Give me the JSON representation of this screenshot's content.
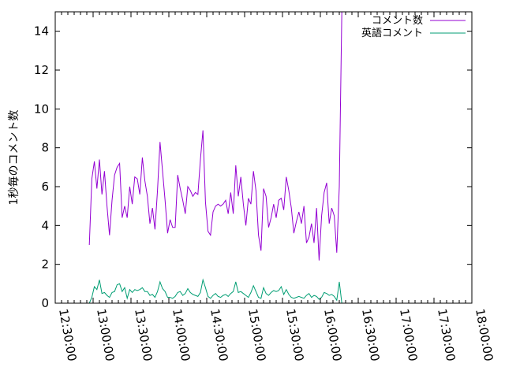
{
  "chart_data": {
    "type": "line",
    "ylabel": "1秒毎のコメント数",
    "xlim": [
      "12:30:00",
      "18:00:00"
    ],
    "ylim": [
      0,
      15
    ],
    "x_ticks": [
      "12:30:00",
      "13:00:00",
      "13:30:00",
      "14:00:00",
      "14:30:00",
      "15:00:00",
      "15:30:00",
      "16:00:00",
      "16:30:00",
      "17:00:00",
      "17:30:00",
      "18:00:00"
    ],
    "y_ticks": [
      "0",
      "2",
      "4",
      "6",
      "8",
      "10",
      "12",
      "14"
    ],
    "legend_position": "top-right",
    "grid": false,
    "series": [
      {
        "name": "コメント数",
        "color": "#9400d3",
        "points": [
          [
            "12:57:00",
            3.0
          ],
          [
            "12:59:00",
            6.4
          ],
          [
            "13:01:00",
            7.3
          ],
          [
            "13:03:00",
            5.9
          ],
          [
            "13:05:00",
            7.4
          ],
          [
            "13:07:00",
            5.6
          ],
          [
            "13:09:00",
            6.8
          ],
          [
            "13:11:00",
            5.0
          ],
          [
            "13:13:00",
            3.5
          ],
          [
            "13:15:00",
            5.3
          ],
          [
            "13:17:00",
            6.6
          ],
          [
            "13:19:00",
            7.0
          ],
          [
            "13:21:00",
            7.2
          ],
          [
            "13:23:00",
            4.4
          ],
          [
            "13:25:00",
            5.0
          ],
          [
            "13:27:00",
            4.4
          ],
          [
            "13:29:00",
            6.0
          ],
          [
            "13:31:00",
            5.1
          ],
          [
            "13:33:00",
            6.5
          ],
          [
            "13:35:00",
            6.4
          ],
          [
            "13:37:00",
            5.6
          ],
          [
            "13:39:00",
            7.5
          ],
          [
            "13:41:00",
            6.3
          ],
          [
            "13:43:00",
            5.5
          ],
          [
            "13:45:00",
            4.1
          ],
          [
            "13:47:00",
            4.9
          ],
          [
            "13:49:00",
            3.8
          ],
          [
            "13:51:00",
            5.8
          ],
          [
            "13:53:00",
            8.3
          ],
          [
            "13:55:00",
            6.8
          ],
          [
            "13:57:00",
            5.3
          ],
          [
            "13:59:00",
            3.6
          ],
          [
            "14:01:00",
            4.3
          ],
          [
            "14:03:00",
            3.9
          ],
          [
            "14:05:00",
            3.9
          ],
          [
            "14:07:00",
            6.6
          ],
          [
            "14:09:00",
            5.9
          ],
          [
            "14:11:00",
            5.3
          ],
          [
            "14:13:00",
            4.6
          ],
          [
            "14:15:00",
            6.0
          ],
          [
            "14:17:00",
            5.8
          ],
          [
            "14:19:00",
            5.5
          ],
          [
            "14:21:00",
            5.7
          ],
          [
            "14:23:00",
            5.6
          ],
          [
            "14:25:00",
            7.4
          ],
          [
            "14:27:00",
            8.9
          ],
          [
            "14:29:00",
            5.2
          ],
          [
            "14:31:00",
            3.7
          ],
          [
            "14:33:00",
            3.5
          ],
          [
            "14:35:00",
            4.7
          ],
          [
            "14:37:00",
            5.0
          ],
          [
            "14:39:00",
            5.1
          ],
          [
            "14:41:00",
            5.0
          ],
          [
            "14:43:00",
            5.1
          ],
          [
            "14:45:00",
            5.3
          ],
          [
            "14:47:00",
            4.6
          ],
          [
            "14:49:00",
            5.7
          ],
          [
            "14:51:00",
            4.6
          ],
          [
            "14:53:00",
            7.1
          ],
          [
            "14:55:00",
            5.5
          ],
          [
            "14:57:00",
            6.5
          ],
          [
            "14:59:00",
            5.1
          ],
          [
            "15:01:00",
            4.0
          ],
          [
            "15:03:00",
            5.4
          ],
          [
            "15:05:00",
            5.1
          ],
          [
            "15:07:00",
            6.8
          ],
          [
            "15:09:00",
            5.8
          ],
          [
            "15:11:00",
            3.5
          ],
          [
            "15:13:00",
            2.7
          ],
          [
            "15:15:00",
            5.9
          ],
          [
            "15:17:00",
            5.5
          ],
          [
            "15:19:00",
            3.9
          ],
          [
            "15:21:00",
            4.4
          ],
          [
            "15:23:00",
            5.1
          ],
          [
            "15:25:00",
            4.4
          ],
          [
            "15:27:00",
            5.3
          ],
          [
            "15:29:00",
            5.4
          ],
          [
            "15:31:00",
            4.8
          ],
          [
            "15:33:00",
            6.5
          ],
          [
            "15:35:00",
            5.8
          ],
          [
            "15:37:00",
            4.9
          ],
          [
            "15:39:00",
            3.6
          ],
          [
            "15:41:00",
            4.2
          ],
          [
            "15:43:00",
            4.7
          ],
          [
            "15:45:00",
            4.1
          ],
          [
            "15:47:00",
            5.0
          ],
          [
            "15:49:00",
            3.1
          ],
          [
            "15:51:00",
            3.4
          ],
          [
            "15:53:00",
            4.1
          ],
          [
            "15:55:00",
            3.1
          ],
          [
            "15:57:00",
            4.9
          ],
          [
            "15:59:00",
            2.2
          ],
          [
            "16:01:00",
            4.5
          ],
          [
            "16:03:00",
            5.7
          ],
          [
            "16:05:00",
            6.2
          ],
          [
            "16:07:00",
            4.1
          ],
          [
            "16:09:00",
            4.9
          ],
          [
            "16:11:00",
            4.5
          ],
          [
            "16:13:00",
            2.6
          ],
          [
            "16:15:00",
            6.0
          ],
          [
            "16:17:00",
            15.0
          ]
        ]
      },
      {
        "name": "英語コメント",
        "color": "#009e73",
        "points": [
          [
            "12:57:00",
            0.0
          ],
          [
            "12:59:00",
            0.3
          ],
          [
            "13:01:00",
            0.85
          ],
          [
            "13:03:00",
            0.7
          ],
          [
            "13:05:00",
            1.2
          ],
          [
            "13:07:00",
            0.5
          ],
          [
            "13:09:00",
            0.55
          ],
          [
            "13:11:00",
            0.4
          ],
          [
            "13:13:00",
            0.3
          ],
          [
            "13:15:00",
            0.55
          ],
          [
            "13:17:00",
            0.6
          ],
          [
            "13:19:00",
            0.95
          ],
          [
            "13:21:00",
            1.0
          ],
          [
            "13:23:00",
            0.6
          ],
          [
            "13:25:00",
            0.8
          ],
          [
            "13:27:00",
            0.25
          ],
          [
            "13:29:00",
            0.7
          ],
          [
            "13:31:00",
            0.55
          ],
          [
            "13:33:00",
            0.7
          ],
          [
            "13:35:00",
            0.65
          ],
          [
            "13:37:00",
            0.7
          ],
          [
            "13:39:00",
            0.8
          ],
          [
            "13:41:00",
            0.6
          ],
          [
            "13:43:00",
            0.6
          ],
          [
            "13:45:00",
            0.4
          ],
          [
            "13:47:00",
            0.45
          ],
          [
            "13:49:00",
            0.3
          ],
          [
            "13:51:00",
            0.6
          ],
          [
            "13:53:00",
            1.1
          ],
          [
            "13:55:00",
            0.75
          ],
          [
            "13:57:00",
            0.6
          ],
          [
            "13:59:00",
            0.3
          ],
          [
            "14:01:00",
            0.3
          ],
          [
            "14:03:00",
            0.25
          ],
          [
            "14:05:00",
            0.35
          ],
          [
            "14:07:00",
            0.55
          ],
          [
            "14:09:00",
            0.6
          ],
          [
            "14:11:00",
            0.4
          ],
          [
            "14:13:00",
            0.5
          ],
          [
            "14:15:00",
            0.75
          ],
          [
            "14:17:00",
            0.55
          ],
          [
            "14:19:00",
            0.45
          ],
          [
            "14:21:00",
            0.4
          ],
          [
            "14:23:00",
            0.35
          ],
          [
            "14:25:00",
            0.55
          ],
          [
            "14:27:00",
            1.2
          ],
          [
            "14:29:00",
            0.8
          ],
          [
            "14:31:00",
            0.35
          ],
          [
            "14:33:00",
            0.25
          ],
          [
            "14:35:00",
            0.4
          ],
          [
            "14:37:00",
            0.5
          ],
          [
            "14:39:00",
            0.35
          ],
          [
            "14:41:00",
            0.3
          ],
          [
            "14:43:00",
            0.4
          ],
          [
            "14:45:00",
            0.45
          ],
          [
            "14:47:00",
            0.35
          ],
          [
            "14:49:00",
            0.5
          ],
          [
            "14:51:00",
            0.6
          ],
          [
            "14:53:00",
            1.1
          ],
          [
            "14:55:00",
            0.55
          ],
          [
            "14:57:00",
            0.6
          ],
          [
            "14:59:00",
            0.5
          ],
          [
            "15:01:00",
            0.4
          ],
          [
            "15:03:00",
            0.3
          ],
          [
            "15:05:00",
            0.55
          ],
          [
            "15:07:00",
            0.9
          ],
          [
            "15:09:00",
            0.6
          ],
          [
            "15:11:00",
            0.3
          ],
          [
            "15:13:00",
            0.25
          ],
          [
            "15:15:00",
            0.8
          ],
          [
            "15:17:00",
            0.5
          ],
          [
            "15:19:00",
            0.4
          ],
          [
            "15:21:00",
            0.55
          ],
          [
            "15:23:00",
            0.65
          ],
          [
            "15:25:00",
            0.6
          ],
          [
            "15:27:00",
            0.65
          ],
          [
            "15:29:00",
            0.85
          ],
          [
            "15:31:00",
            0.45
          ],
          [
            "15:33:00",
            0.7
          ],
          [
            "15:35:00",
            0.45
          ],
          [
            "15:37:00",
            0.3
          ],
          [
            "15:39:00",
            0.25
          ],
          [
            "15:41:00",
            0.3
          ],
          [
            "15:43:00",
            0.35
          ],
          [
            "15:45:00",
            0.3
          ],
          [
            "15:47:00",
            0.25
          ],
          [
            "15:49:00",
            0.4
          ],
          [
            "15:51:00",
            0.5
          ],
          [
            "15:53:00",
            0.3
          ],
          [
            "15:55:00",
            0.4
          ],
          [
            "15:57:00",
            0.35
          ],
          [
            "15:59:00",
            0.2
          ],
          [
            "16:01:00",
            0.3
          ],
          [
            "16:03:00",
            0.55
          ],
          [
            "16:05:00",
            0.5
          ],
          [
            "16:07:00",
            0.4
          ],
          [
            "16:09:00",
            0.45
          ],
          [
            "16:11:00",
            0.35
          ],
          [
            "16:13:00",
            0.15
          ],
          [
            "16:15:00",
            1.1
          ],
          [
            "16:17:00",
            0.0
          ]
        ]
      }
    ]
  }
}
